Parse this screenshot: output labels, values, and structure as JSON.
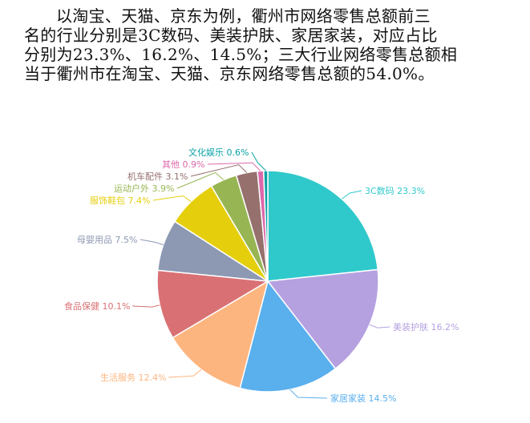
{
  "paragraph": {
    "lines": [
      "以淘宝、天猫、京东为例，衢州市网络零售总额前三",
      "名的行业分别是3C数码、美装护肤、家居家装，对应占比",
      "分别为23.3%、16.2%、14.5%；三大行业网络零售总额相",
      "当于衢州市在淘宝、天猫、京东网络零售总额的54.0%。"
    ]
  },
  "chart_data": {
    "type": "pie",
    "slices": [
      {
        "label": "3C数码",
        "value": 23.3,
        "display": "23.3%",
        "color": "#30c9cb"
      },
      {
        "label": "美装护肤",
        "value": 16.2,
        "display": "16.2%",
        "color": "#b5a1e0"
      },
      {
        "label": "家居家装",
        "value": 14.5,
        "display": "14.5%",
        "color": "#5aafed"
      },
      {
        "label": "生活服务",
        "value": 12.4,
        "display": "12.4%",
        "color": "#fdb57f"
      },
      {
        "label": "食品保健",
        "value": 10.1,
        "display": "10.1%",
        "color": "#d97174"
      },
      {
        "label": "母婴用品",
        "value": 7.5,
        "display": "7.5%",
        "color": "#8d98b3"
      },
      {
        "label": "服饰鞋包",
        "value": 7.4,
        "display": "7.4%",
        "color": "#e5cf0d"
      },
      {
        "label": "运动户外",
        "value": 3.9,
        "display": "3.9%",
        "color": "#97b552"
      },
      {
        "label": "机车配件",
        "value": 3.1,
        "display": "3.1%",
        "color": "#95706d"
      },
      {
        "label": "其他",
        "value": 0.9,
        "display": "0.9%",
        "color": "#dc69aa"
      },
      {
        "label": "文化娱乐",
        "value": 0.6,
        "display": "0.6%",
        "color": "#07a2a4"
      }
    ]
  }
}
